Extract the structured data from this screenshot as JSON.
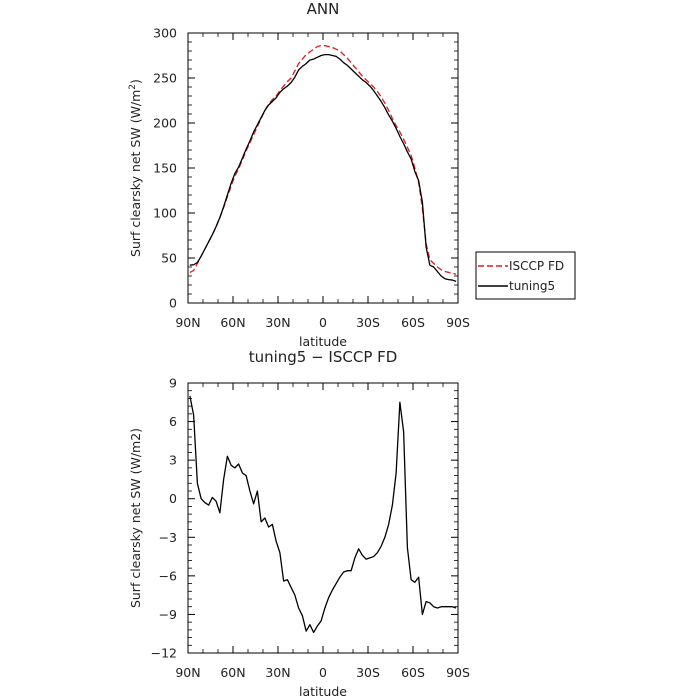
{
  "chart_data": [
    {
      "type": "line",
      "title": "ANN",
      "xlabel": "latitude",
      "ylabel": "Surf clearsky net SW (W/m²)",
      "ylabel_main": "Surf clearsky net SW (W/m",
      "ylabel_sup": "2",
      "ylabel_end": ")",
      "xlim": [
        -90,
        90
      ],
      "ylim": [
        0,
        300
      ],
      "xticks": [
        -90,
        -60,
        -30,
        0,
        30,
        60,
        90
      ],
      "xtick_labels": [
        "90N",
        "60N",
        "30N",
        "0",
        "30S",
        "60S",
        "90S"
      ],
      "yticks": [
        0,
        50,
        100,
        150,
        200,
        250,
        300
      ],
      "ytick_labels": [
        "0",
        "50",
        "100",
        "150",
        "200",
        "250",
        "300"
      ],
      "legend_position": "right",
      "series": [
        {
          "name": "ISCCP FD",
          "color": "#e41a1c",
          "dash": "dashed",
          "x": [
            -88.75,
            -86.25,
            -83.75,
            -81.25,
            -78.75,
            -76.25,
            -73.75,
            -71.25,
            -68.75,
            -66.25,
            -63.75,
            -61.25,
            -58.75,
            -56.25,
            -53.75,
            -51.25,
            -48.75,
            -46.25,
            -43.75,
            -41.25,
            -38.75,
            -36.25,
            -33.75,
            -31.25,
            -28.75,
            -26.25,
            -23.75,
            -21.25,
            -18.75,
            -16.25,
            -13.75,
            -11.25,
            -8.75,
            -6.25,
            -3.75,
            -1.25,
            1.25,
            3.75,
            6.25,
            8.75,
            11.25,
            13.75,
            16.25,
            18.75,
            21.25,
            23.75,
            26.25,
            28.75,
            31.25,
            33.75,
            36.25,
            38.75,
            41.25,
            43.75,
            46.25,
            48.75,
            51.25,
            53.75,
            56.25,
            58.75,
            61.25,
            63.75,
            66.25,
            68.75,
            71.25,
            73.75,
            76.25,
            78.75,
            81.25,
            83.75,
            86.25,
            88.75
          ],
          "y": [
            34,
            36,
            44,
            52,
            60,
            68,
            76,
            85,
            95,
            106,
            118,
            130,
            141,
            149,
            159,
            169,
            178,
            187,
            196,
            205,
            214,
            221,
            226,
            230,
            236,
            241,
            246,
            250,
            258,
            266,
            271,
            276,
            279,
            282,
            285,
            286,
            286,
            285,
            284,
            282,
            280,
            276,
            272,
            267,
            262,
            257,
            252,
            248,
            244,
            240,
            235,
            229,
            222,
            214,
            205,
            197,
            190,
            182,
            173,
            164,
            150,
            134,
            105,
            66,
            48,
            44,
            40,
            37,
            35,
            34,
            33,
            32
          ]
        },
        {
          "name": "tuning5",
          "color": "#000000",
          "dash": "solid",
          "x": [
            -88.75,
            -86.25,
            -83.75,
            -81.25,
            -78.75,
            -76.25,
            -73.75,
            -71.25,
            -68.75,
            -66.25,
            -63.75,
            -61.25,
            -58.75,
            -56.25,
            -53.75,
            -51.25,
            -48.75,
            -46.25,
            -43.75,
            -41.25,
            -38.75,
            -36.25,
            -33.75,
            -31.25,
            -28.75,
            -26.25,
            -23.75,
            -21.25,
            -18.75,
            -16.25,
            -13.75,
            -11.25,
            -8.75,
            -6.25,
            -3.75,
            -1.25,
            1.25,
            3.75,
            6.25,
            8.75,
            11.25,
            13.75,
            16.25,
            18.75,
            21.25,
            23.75,
            26.25,
            28.75,
            31.25,
            33.75,
            36.25,
            38.75,
            41.25,
            43.75,
            46.25,
            48.75,
            51.25,
            53.75,
            56.25,
            58.75,
            61.25,
            63.75,
            66.25,
            68.75,
            71.25,
            73.75,
            76.25,
            78.75,
            81.25,
            83.75,
            86.25,
            88.75
          ],
          "y": [
            42,
            42.5,
            45,
            52,
            60,
            68,
            76,
            85,
            95,
            107,
            120,
            133,
            144,
            151,
            161,
            171,
            180,
            190,
            198,
            206,
            214,
            220,
            224,
            228,
            234,
            238,
            241,
            245,
            251,
            259,
            263,
            266,
            270,
            271,
            273,
            275,
            276,
            276,
            275,
            274,
            271,
            267,
            264,
            260,
            256,
            252,
            248,
            245,
            241,
            236,
            230,
            224,
            217,
            209,
            202,
            194,
            185,
            177,
            168,
            160,
            146,
            136,
            112,
            62,
            42,
            40,
            35,
            30,
            27,
            26,
            25.5,
            24
          ]
        }
      ]
    },
    {
      "type": "line",
      "title": "tuning5 − ISCCP FD",
      "xlabel": "latitude",
      "ylabel": "Surf clearsky net SW (W/m2)",
      "xlim": [
        -90,
        90
      ],
      "ylim": [
        -12,
        9
      ],
      "xticks": [
        -90,
        -60,
        -30,
        0,
        30,
        60,
        90
      ],
      "xtick_labels": [
        "90N",
        "60N",
        "30N",
        "0",
        "30S",
        "60S",
        "90S"
      ],
      "yticks": [
        -12,
        -9,
        -6,
        -3,
        0,
        3,
        6,
        9
      ],
      "ytick_labels": [
        "−12",
        "−9",
        "−6",
        "−3",
        "0",
        "3",
        "6",
        "9"
      ],
      "series": [
        {
          "color": "#000000",
          "dash": "solid",
          "x": [
            -88.75,
            -86.25,
            -83.75,
            -81.25,
            -78.75,
            -76.25,
            -73.75,
            -71.25,
            -68.75,
            -66.25,
            -63.75,
            -61.25,
            -58.75,
            -56.25,
            -53.75,
            -51.25,
            -48.75,
            -46.25,
            -43.75,
            -41.25,
            -38.75,
            -36.25,
            -33.75,
            -31.25,
            -28.75,
            -26.25,
            -23.75,
            -21.25,
            -18.75,
            -16.25,
            -13.75,
            -11.25,
            -8.75,
            -6.25,
            -3.75,
            -1.25,
            1.25,
            3.75,
            6.25,
            8.75,
            11.25,
            13.75,
            16.25,
            18.75,
            21.25,
            23.75,
            26.25,
            28.75,
            31.25,
            33.75,
            36.25,
            38.75,
            41.25,
            43.75,
            46.25,
            48.75,
            51.25,
            53.75,
            56.25,
            58.75,
            61.25,
            63.75,
            66.25,
            68.75,
            71.25,
            73.75,
            76.25,
            78.75,
            81.25,
            83.75,
            86.25,
            88.75
          ],
          "y": [
            8.0,
            6.5,
            1.2,
            0.0,
            -0.3,
            -0.5,
            0.1,
            -0.2,
            -1.1,
            1.5,
            3.3,
            2.6,
            2.4,
            2.7,
            2.0,
            1.8,
            0.6,
            -0.4,
            0.6,
            -1.8,
            -1.5,
            -2.2,
            -2.0,
            -3.3,
            -4.2,
            -6.4,
            -6.3,
            -6.9,
            -7.5,
            -8.5,
            -9.1,
            -10.3,
            -9.8,
            -10.4,
            -9.9,
            -9.5,
            -8.5,
            -7.7,
            -7.1,
            -6.6,
            -6.1,
            -5.7,
            -5.6,
            -5.6,
            -4.6,
            -3.9,
            -4.4,
            -4.7,
            -4.6,
            -4.5,
            -4.2,
            -3.7,
            -3.0,
            -2.0,
            -0.5,
            2.0,
            7.5,
            5.2,
            -3.8,
            -6.3,
            -6.5,
            -6.1,
            -9.0,
            -8.0,
            -8.1,
            -8.4,
            -8.5,
            -8.4,
            -8.4,
            -8.4,
            -8.4,
            -8.5
          ]
        }
      ]
    }
  ]
}
